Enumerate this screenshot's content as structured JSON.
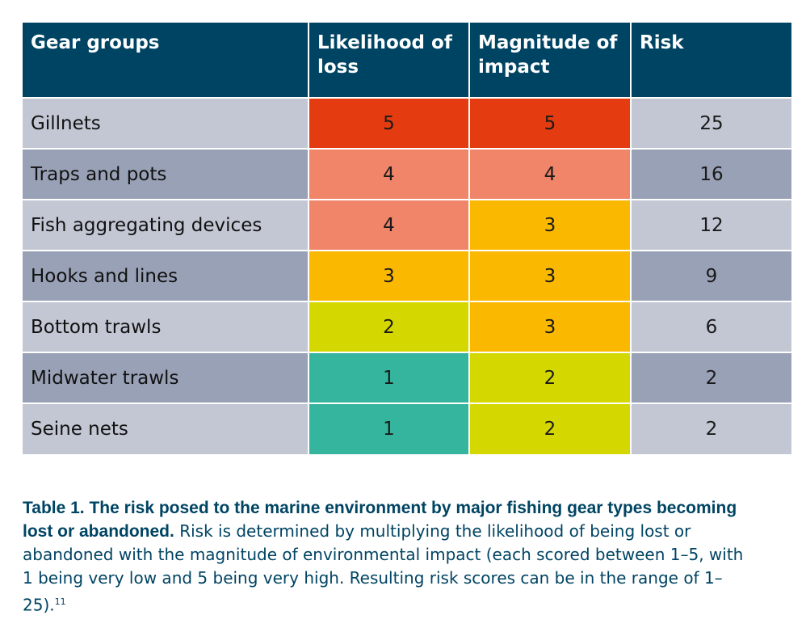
{
  "table": {
    "headers": [
      "Gear groups",
      "Likelihood of loss",
      "Magnitude of impact",
      "Risk"
    ],
    "rows": [
      {
        "gear": "Gillnets",
        "likelihood": "5",
        "magnitude": "5",
        "risk": "25"
      },
      {
        "gear": "Traps and pots",
        "likelihood": "4",
        "magnitude": "4",
        "risk": "16"
      },
      {
        "gear": "Fish aggregating devices",
        "likelihood": "4",
        "magnitude": "3",
        "risk": "12"
      },
      {
        "gear": "Hooks and lines",
        "likelihood": "3",
        "magnitude": "3",
        "risk": "9"
      },
      {
        "gear": "Bottom trawls",
        "likelihood": "2",
        "magnitude": "3",
        "risk": "6"
      },
      {
        "gear": "Midwater trawls",
        "likelihood": "1",
        "magnitude": "2",
        "risk": "2"
      },
      {
        "gear": "Seine nets",
        "likelihood": "1",
        "magnitude": "2",
        "risk": "2"
      }
    ]
  },
  "score_colors": {
    "1": "#35b59e",
    "2": "#d5d800",
    "3": "#fab800",
    "4": "#f0856a",
    "5": "#e43c10"
  },
  "colors": {
    "header_bg": "#004463",
    "caption_text": "#004463"
  },
  "caption": {
    "bold": "Table 1. The risk posed to the marine environment by major fishing gear types becoming lost or abandoned.",
    "body": "Risk is determined by multiplying the likelihood of being lost or abandoned with the magnitude of environmental impact (each scored between 1–5, with 1 being very low and 5 being very high. Resulting risk scores can be in the range of 1–25).",
    "footnote": "11"
  }
}
